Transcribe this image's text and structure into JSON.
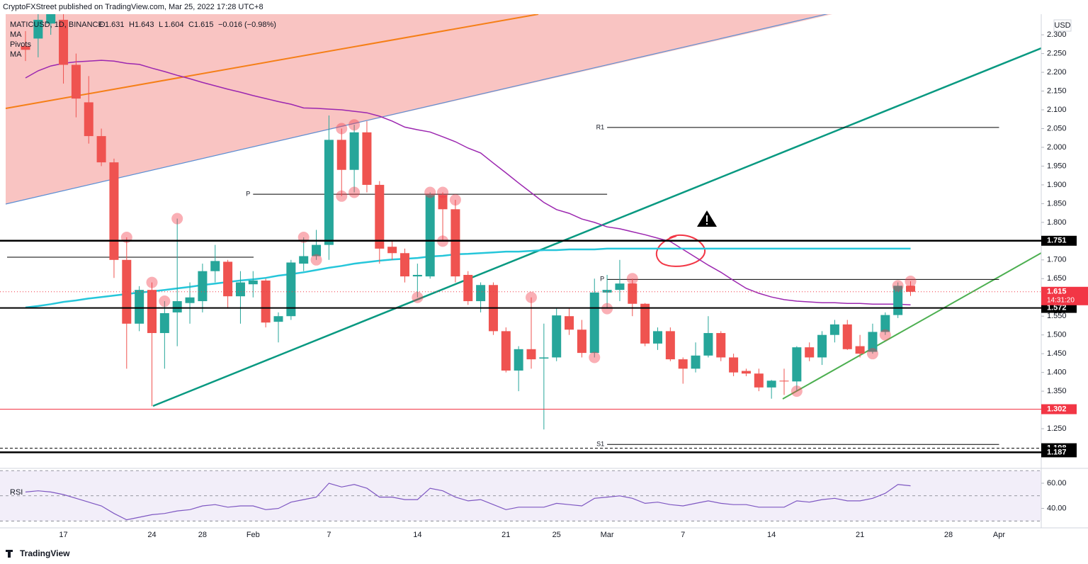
{
  "header": {
    "publisher": "CryptoFXStreet published on TradingView.com, Mar 25, 2022 17:28 UTC+8",
    "symbol": "MATICUSD, 1D, BINANCE",
    "ohlc_letters": [
      "O",
      "H",
      "L",
      "C"
    ],
    "change": "−0.016 (−0.98%)",
    "legend": [
      "MA",
      "Pivots",
      "MA"
    ],
    "currency": "USD",
    "countdown": "14:31:20",
    "brand": "TradingView",
    "rsi_label": "RSI"
  },
  "chart_data": {
    "type": "candlestick",
    "up_color": "#26a69a",
    "down_color": "#ef5350",
    "grid": false,
    "categories": [
      null,
      null,
      null,
      "17",
      null,
      null,
      null,
      null,
      null,
      null,
      "24",
      null,
      null,
      null,
      "28",
      null,
      null,
      null,
      "Feb",
      null,
      null,
      null,
      null,
      null,
      "7",
      null,
      null,
      null,
      null,
      null,
      null,
      "14",
      null,
      null,
      null,
      null,
      null,
      null,
      "21",
      null,
      null,
      null,
      "25",
      null,
      null,
      null,
      "Mar",
      null,
      null,
      null,
      null,
      null,
      "7",
      null,
      null,
      null,
      null,
      null,
      null,
      "14",
      null,
      null,
      null,
      null,
      null,
      null,
      "21",
      null,
      null,
      null,
      null,
      null,
      null,
      "28",
      null,
      null,
      null,
      "Apr"
    ],
    "open": [
      2.27,
      2.29,
      2.33,
      2.34,
      2.22,
      2.12,
      2.03,
      1.96,
      1.7,
      1.53,
      1.62,
      1.505,
      1.56,
      1.585,
      1.59,
      1.67,
      1.695,
      1.603,
      1.635,
      1.645,
      1.535,
      1.55,
      1.69,
      1.71,
      1.74,
      2.02,
      1.94,
      2.04,
      1.9,
      1.735,
      1.718,
      1.656,
      1.656,
      1.873,
      1.835,
      1.66,
      1.59,
      1.633,
      1.51,
      1.405,
      1.462,
      1.437,
      1.44,
      1.55,
      1.514,
      1.452,
      1.613,
      1.62,
      1.637,
      1.583,
      1.477,
      1.51,
      1.435,
      1.41,
      1.445,
      1.505,
      1.44,
      1.404,
      1.397,
      1.36,
      1.378,
      1.376,
      1.467,
      1.44,
      1.5,
      1.528,
      1.47,
      1.455,
      1.508,
      1.553,
      1.631,
      null,
      null,
      null,
      null,
      null,
      null,
      null
    ],
    "high": [
      2.31,
      2.38,
      2.4,
      2.38,
      2.25,
      2.19,
      2.05,
      1.97,
      1.76,
      1.63,
      1.64,
      1.59,
      1.81,
      1.64,
      1.69,
      1.74,
      1.7,
      1.67,
      1.67,
      1.65,
      1.56,
      1.7,
      1.76,
      1.78,
      2.085,
      2.05,
      2.06,
      2.07,
      1.91,
      1.75,
      1.73,
      1.69,
      1.88,
      1.88,
      1.86,
      1.67,
      1.64,
      1.64,
      1.52,
      1.47,
      1.6,
      1.53,
      1.57,
      1.57,
      1.54,
      1.65,
      1.66,
      1.7,
      1.65,
      1.585,
      1.52,
      1.52,
      1.44,
      1.48,
      1.55,
      1.51,
      1.45,
      1.41,
      1.41,
      1.38,
      1.41,
      1.47,
      1.48,
      1.51,
      1.54,
      1.54,
      1.5,
      1.53,
      1.56,
      1.64,
      1.643,
      null,
      null,
      null,
      null,
      null,
      null,
      null
    ],
    "low": [
      2.23,
      2.24,
      2.3,
      2.17,
      2.08,
      2.01,
      1.95,
      1.652,
      1.41,
      1.51,
      1.31,
      1.41,
      1.47,
      1.53,
      1.56,
      1.64,
      1.57,
      1.53,
      1.6,
      1.52,
      1.48,
      1.54,
      1.67,
      1.7,
      1.7,
      1.87,
      1.88,
      1.88,
      1.69,
      1.7,
      1.64,
      1.6,
      1.65,
      1.75,
      1.64,
      1.58,
      1.56,
      1.5,
      1.4,
      1.35,
      1.41,
      1.248,
      1.43,
      1.5,
      1.44,
      1.44,
      1.57,
      1.59,
      1.55,
      1.47,
      1.46,
      1.43,
      1.37,
      1.4,
      1.44,
      1.43,
      1.39,
      1.39,
      1.35,
      1.33,
      1.34,
      1.35,
      1.43,
      1.42,
      1.48,
      1.46,
      1.44,
      1.45,
      1.5,
      1.545,
      1.604,
      null,
      null,
      null,
      null,
      null,
      null,
      null
    ],
    "close": [
      2.26,
      2.34,
      2.36,
      2.22,
      2.13,
      2.03,
      1.96,
      1.7,
      1.53,
      1.62,
      1.505,
      1.558,
      1.59,
      1.6,
      1.67,
      1.697,
      1.603,
      1.64,
      1.645,
      1.533,
      1.55,
      1.693,
      1.71,
      1.74,
      2.02,
      1.94,
      2.04,
      1.9,
      1.73,
      1.718,
      1.656,
      1.66,
      1.873,
      1.835,
      1.656,
      1.59,
      1.633,
      1.51,
      1.405,
      1.462,
      1.435,
      1.44,
      1.552,
      1.514,
      1.452,
      1.613,
      1.62,
      1.637,
      1.583,
      1.477,
      1.51,
      1.435,
      1.41,
      1.445,
      1.505,
      1.44,
      1.4,
      1.397,
      1.36,
      1.378,
      1.376,
      1.467,
      1.44,
      1.5,
      1.528,
      1.462,
      1.45,
      1.508,
      1.553,
      1.631,
      1.615,
      null,
      null,
      null,
      null,
      null,
      null,
      null
    ],
    "moving_averages": [
      {
        "color": "#9c27b0",
        "values": [
          2.185,
          2.204,
          2.217,
          2.224,
          2.228,
          2.23,
          2.232,
          2.23,
          2.224,
          2.221,
          2.211,
          2.202,
          2.192,
          2.183,
          2.173,
          2.164,
          2.155,
          2.147,
          2.138,
          2.13,
          2.122,
          2.115,
          2.105,
          2.104,
          2.102,
          2.1,
          2.096,
          2.092,
          2.083,
          2.07,
          2.054,
          2.047,
          2.041,
          2.028,
          2.015,
          1.998,
          1.985,
          1.958,
          1.932,
          1.905,
          1.879,
          1.853,
          1.834,
          1.824,
          1.809,
          1.8,
          1.788,
          1.783,
          1.775,
          1.767,
          1.758,
          1.749,
          1.728,
          1.707,
          1.686,
          1.667,
          1.645,
          1.624,
          1.611,
          1.601,
          1.594,
          1.59,
          1.588,
          1.586,
          1.586,
          1.584,
          1.584,
          1.582,
          1.582,
          1.582,
          1.58,
          null,
          null,
          null,
          null,
          null,
          null,
          null
        ]
      },
      {
        "color": "#26c6da",
        "values": [
          1.573,
          1.577,
          1.582,
          1.588,
          1.592,
          1.597,
          1.601,
          1.605,
          1.609,
          1.613,
          1.616,
          1.62,
          1.624,
          1.628,
          1.633,
          1.637,
          1.641,
          1.645,
          1.648,
          1.652,
          1.658,
          1.662,
          1.667,
          1.673,
          1.679,
          1.684,
          1.69,
          1.694,
          1.698,
          1.701,
          1.703,
          1.705,
          1.709,
          1.711,
          1.715,
          1.716,
          1.718,
          1.72,
          1.722,
          1.722,
          1.724,
          1.726,
          1.726,
          1.728,
          1.728,
          1.728,
          1.73,
          1.73,
          1.73,
          1.73,
          1.73,
          1.73,
          1.73,
          1.73,
          1.73,
          1.73,
          1.73,
          1.73,
          1.73,
          1.73,
          1.73,
          1.73,
          1.73,
          1.73,
          1.73,
          1.73,
          1.73,
          1.73,
          1.73,
          1.73,
          1.73,
          null,
          null,
          null,
          null,
          null,
          null,
          null
        ]
      }
    ],
    "pivots": [
      {
        "label": "P",
        "value": 1.875
      },
      {
        "label": "R1",
        "value": 2.053
      },
      {
        "label": "P",
        "value": 1.648
      },
      {
        "label": "S1",
        "value": 1.208
      }
    ],
    "levels": [
      {
        "value": 1.751,
        "color": "#000000",
        "width": 2.5,
        "dash": false
      },
      {
        "value": 1.572,
        "color": "#000000",
        "width": 2,
        "dash": false
      },
      {
        "value": 1.302,
        "color": "#f23645",
        "width": 1,
        "dash": false
      },
      {
        "value": 1.198,
        "color": "#000000",
        "width": 1,
        "dash": true
      },
      {
        "value": 1.187,
        "color": "#000000",
        "width": 2.5,
        "dash": false
      }
    ],
    "last_color": "#f23645",
    "ylim": [
      1.15,
      2.355
    ],
    "yticks": [
      {
        "value": 2.3,
        "label": "2.300"
      },
      {
        "value": 2.25,
        "label": "2.250"
      },
      {
        "value": 2.2,
        "label": "2.200"
      },
      {
        "value": 2.15,
        "label": "2.150"
      },
      {
        "value": 2.1,
        "label": "2.100"
      },
      {
        "value": 2.05,
        "label": "2.050"
      },
      {
        "value": 2,
        "label": "2.000"
      },
      {
        "value": 1.95,
        "label": "1.950"
      },
      {
        "value": 1.9,
        "label": "1.900"
      },
      {
        "value": 1.85,
        "label": "1.850"
      },
      {
        "value": 1.8,
        "label": "1.800"
      },
      {
        "value": 1.7,
        "label": "1.700"
      },
      {
        "value": 1.65,
        "label": "1.650"
      },
      {
        "value": 1.55,
        "label": "1.550"
      },
      {
        "value": 1.5,
        "label": "1.500"
      },
      {
        "value": 1.45,
        "label": "1.450"
      },
      {
        "value": 1.4,
        "label": "1.400"
      },
      {
        "value": 1.35,
        "label": "1.350"
      },
      {
        "value": 1.25,
        "label": "1.250"
      }
    ],
    "rsi": {
      "color": "#7e57c2",
      "ylim": [
        26.25,
        71.25
      ],
      "band": [
        30,
        70
      ],
      "midline": 50,
      "yticks": [
        {
          "value": 60,
          "label": "60.00"
        },
        {
          "value": 40,
          "label": "40.00"
        }
      ],
      "values": [
        53,
        54,
        53,
        51,
        48,
        45,
        42,
        36,
        31,
        33,
        35,
        36,
        38,
        39,
        42,
        43,
        41,
        42,
        42,
        39,
        40,
        45,
        47,
        49,
        60,
        57,
        59,
        56,
        49,
        49,
        47,
        47,
        56,
        54,
        49,
        46,
        47,
        43,
        39,
        41,
        41,
        41,
        44,
        43,
        42,
        48,
        49,
        50,
        48,
        44,
        45,
        43,
        42,
        44,
        46,
        44,
        43,
        43,
        41,
        41,
        41,
        46,
        45,
        47,
        48,
        46,
        46,
        48,
        52,
        59,
        58,
        null,
        null,
        null,
        null,
        null,
        null,
        null
      ]
    }
  }
}
